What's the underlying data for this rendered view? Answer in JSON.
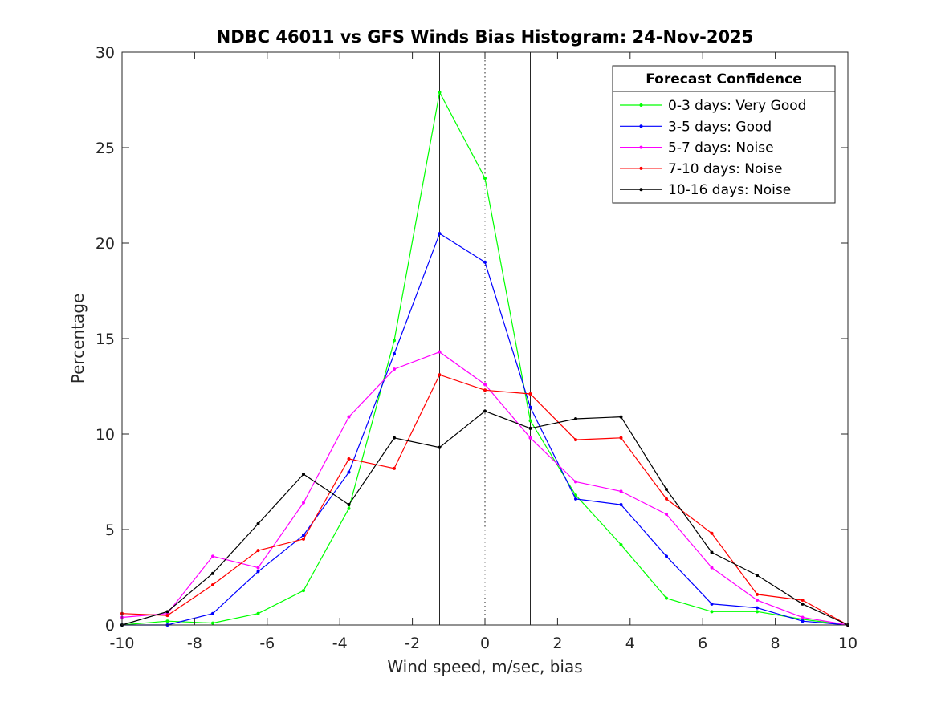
{
  "chart_data": {
    "type": "line",
    "title": "NDBC 46011 vs GFS Winds Bias Histogram: 24-Nov-2025",
    "xlabel": "Wind speed, m/sec, bias",
    "ylabel": "Percentage",
    "xlim": [
      -10,
      10
    ],
    "ylim": [
      0,
      30
    ],
    "xticks": [
      -10,
      -8,
      -6,
      -4,
      -2,
      0,
      2,
      4,
      6,
      8,
      10
    ],
    "yticks": [
      0,
      5,
      10,
      15,
      20,
      25,
      30
    ],
    "grid": false,
    "x": [
      -10,
      -8.75,
      -7.5,
      -6.25,
      -5,
      -3.75,
      -2.5,
      -1.25,
      0,
      1.25,
      2.5,
      3.75,
      5,
      6.25,
      7.5,
      8.75,
      10
    ],
    "reference_lines": [
      {
        "x": -1.25,
        "style": "solid"
      },
      {
        "x": 0,
        "style": "dotted"
      },
      {
        "x": 1.25,
        "style": "solid"
      }
    ],
    "legend": {
      "title": "Forecast Confidence",
      "location": "top-right"
    },
    "series": [
      {
        "name": "0-3 days: Very Good",
        "color": "#00ff00",
        "values": [
          0,
          0.2,
          0.1,
          0.6,
          1.8,
          6.1,
          14.9,
          27.9,
          23.4,
          10.7,
          6.8,
          4.2,
          1.4,
          0.7,
          0.7,
          0.3,
          0
        ]
      },
      {
        "name": "3-5 days: Good",
        "color": "#0000ff",
        "values": [
          0,
          0,
          0.6,
          2.8,
          4.7,
          8.0,
          14.2,
          20.5,
          19.0,
          11.4,
          6.6,
          6.3,
          3.6,
          1.1,
          0.9,
          0.2,
          0
        ]
      },
      {
        "name": "5-7 days: Noise",
        "color": "#ff00ff",
        "values": [
          0.4,
          0.6,
          3.6,
          3.0,
          6.4,
          10.9,
          13.4,
          14.3,
          12.6,
          9.8,
          7.5,
          7.0,
          5.8,
          3.0,
          1.3,
          0.4,
          0
        ]
      },
      {
        "name": "7-10 days: Noise",
        "color": "#ff0000",
        "values": [
          0.6,
          0.5,
          2.1,
          3.9,
          4.5,
          8.7,
          8.2,
          13.1,
          12.3,
          12.1,
          9.7,
          9.8,
          6.6,
          4.8,
          1.6,
          1.3,
          0
        ]
      },
      {
        "name": "10-16 days: Noise",
        "color": "#000000",
        "values": [
          0,
          0.7,
          2.7,
          5.3,
          7.9,
          6.3,
          9.8,
          9.3,
          11.2,
          10.3,
          10.8,
          10.9,
          7.1,
          3.8,
          2.6,
          1.1,
          0
        ]
      }
    ]
  }
}
